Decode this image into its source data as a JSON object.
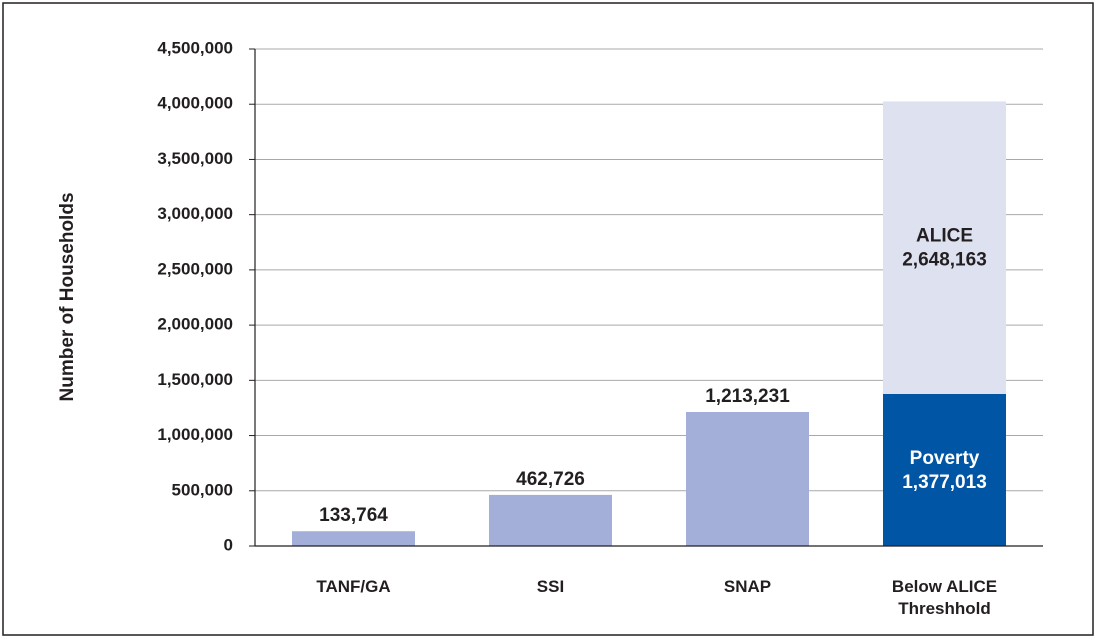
{
  "chart_data": {
    "type": "stacked_bar",
    "y_label": "Number of Households",
    "categories": [
      "TANF/GA",
      "SSI",
      "SNAP",
      "Below ALICE Threshhold"
    ],
    "series": [
      {
        "color": "#a4afd9",
        "values": [
          133764,
          462726,
          1213231,
          null
        ],
        "value_labels": [
          "133,764",
          "462,726",
          "1,213,231",
          null
        ]
      },
      {
        "name": "Poverty",
        "color": "#0055a5",
        "values": [
          null,
          null,
          null,
          1377013
        ],
        "value_labels": [
          null,
          null,
          null,
          "1,377,013"
        ]
      },
      {
        "name": "ALICE",
        "color": "#dde1f0",
        "values": [
          null,
          null,
          null,
          2648163
        ],
        "value_labels": [
          null,
          null,
          null,
          "2,648,163"
        ]
      }
    ],
    "ylim": [
      0,
      4500000
    ],
    "yticks": [
      0,
      {
        "value": 500000,
        "label": "500,000"
      },
      {
        "value": 1000000,
        "label": "1,000,000"
      },
      {
        "value": 1500000,
        "label": "1,500,000"
      },
      {
        "value": 2000000,
        "label": "2,000,000"
      },
      {
        "value": 2500000,
        "label": "2,500,000"
      },
      {
        "value": 3000000,
        "label": "3,000,000"
      },
      {
        "value": 3500000,
        "label": "3,500,000"
      },
      {
        "value": 4000000,
        "label": "4,000,000"
      },
      {
        "value": 4500000,
        "label": "4,500,000"
      }
    ],
    "grid": true
  }
}
